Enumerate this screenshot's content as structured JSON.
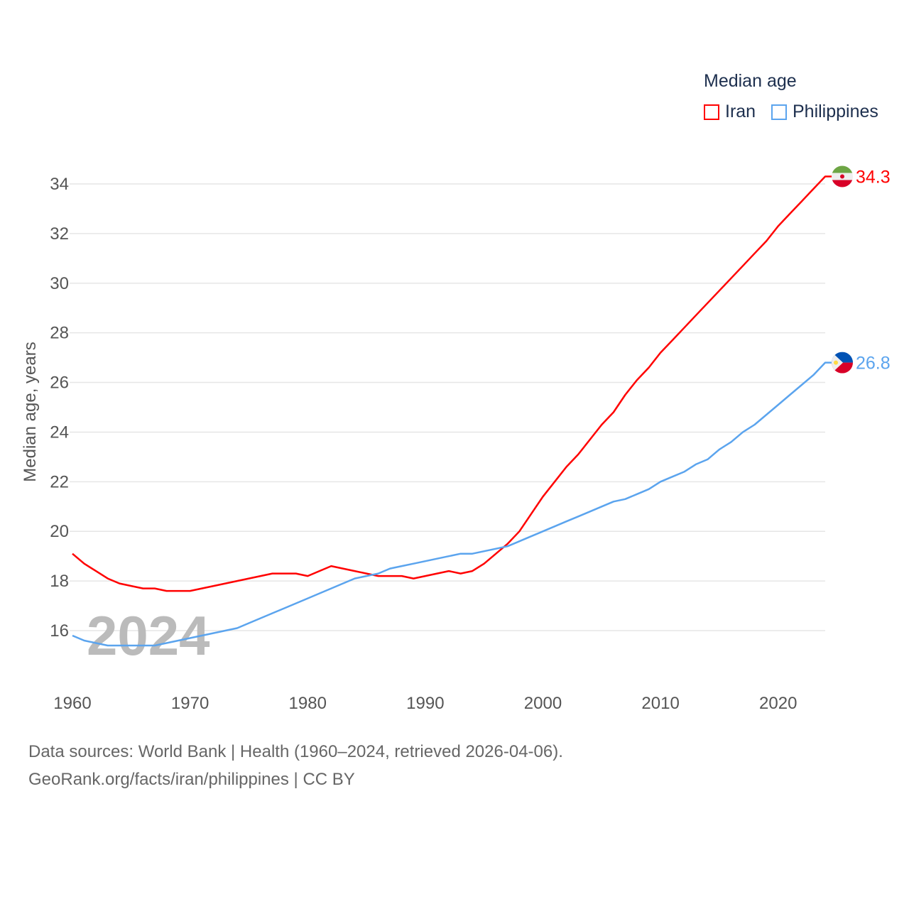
{
  "legend": {
    "title": "Median age"
  },
  "footer": {
    "line1": "Data sources: World Bank | Health (1960–2024, retrieved 2026-04-06).",
    "line2": "GeoRank.org/facts/iran/philippines | CC BY"
  },
  "watermark_year": "2024",
  "chart_data": {
    "type": "line",
    "title": "Median age",
    "xlabel": "",
    "ylabel": "Median age, years",
    "xlim": [
      1960,
      2024
    ],
    "ylim": [
      14.5,
      34.5
    ],
    "xticks": [
      1960,
      1970,
      1980,
      1990,
      2000,
      2010,
      2020
    ],
    "yticks": [
      16,
      18,
      20,
      22,
      24,
      26,
      28,
      30,
      32,
      34
    ],
    "grid": true,
    "legend_position": "top-right",
    "x": [
      1960,
      1961,
      1962,
      1963,
      1964,
      1965,
      1966,
      1967,
      1968,
      1969,
      1970,
      1971,
      1972,
      1973,
      1974,
      1975,
      1976,
      1977,
      1978,
      1979,
      1980,
      1981,
      1982,
      1983,
      1984,
      1985,
      1986,
      1987,
      1988,
      1989,
      1990,
      1991,
      1992,
      1993,
      1994,
      1995,
      1996,
      1997,
      1998,
      1999,
      2000,
      2001,
      2002,
      2003,
      2004,
      2005,
      2006,
      2007,
      2008,
      2009,
      2010,
      2011,
      2012,
      2013,
      2014,
      2015,
      2016,
      2017,
      2018,
      2019,
      2020,
      2021,
      2022,
      2023,
      2024
    ],
    "series": [
      {
        "name": "Iran",
        "color": "#ff0000",
        "end_label": "34.3",
        "flag": "iran-flag",
        "values": [
          19.1,
          18.7,
          18.4,
          18.1,
          17.9,
          17.8,
          17.7,
          17.7,
          17.6,
          17.6,
          17.6,
          17.7,
          17.8,
          17.9,
          18.0,
          18.1,
          18.2,
          18.3,
          18.3,
          18.3,
          18.2,
          18.4,
          18.6,
          18.5,
          18.4,
          18.3,
          18.2,
          18.2,
          18.2,
          18.1,
          18.2,
          18.3,
          18.4,
          18.3,
          18.4,
          18.7,
          19.1,
          19.5,
          20.0,
          20.7,
          21.4,
          22.0,
          22.6,
          23.1,
          23.7,
          24.3,
          24.8,
          25.5,
          26.1,
          26.6,
          27.2,
          27.7,
          28.2,
          28.7,
          29.2,
          29.7,
          30.2,
          30.7,
          31.2,
          31.7,
          32.3,
          32.8,
          33.3,
          33.8,
          34.3
        ]
      },
      {
        "name": "Philippines",
        "color": "#5ba4ee",
        "end_label": "26.8",
        "flag": "philippines-flag",
        "values": [
          15.8,
          15.6,
          15.5,
          15.4,
          15.4,
          15.4,
          15.4,
          15.4,
          15.5,
          15.6,
          15.7,
          15.8,
          15.9,
          16.0,
          16.1,
          16.3,
          16.5,
          16.7,
          16.9,
          17.1,
          17.3,
          17.5,
          17.7,
          17.9,
          18.1,
          18.2,
          18.3,
          18.5,
          18.6,
          18.7,
          18.8,
          18.9,
          19.0,
          19.1,
          19.1,
          19.2,
          19.3,
          19.4,
          19.6,
          19.8,
          20.0,
          20.2,
          20.4,
          20.6,
          20.8,
          21.0,
          21.2,
          21.3,
          21.5,
          21.7,
          22.0,
          22.2,
          22.4,
          22.7,
          22.9,
          23.3,
          23.6,
          24.0,
          24.3,
          24.7,
          25.1,
          25.5,
          25.9,
          26.3,
          26.8
        ]
      }
    ]
  }
}
